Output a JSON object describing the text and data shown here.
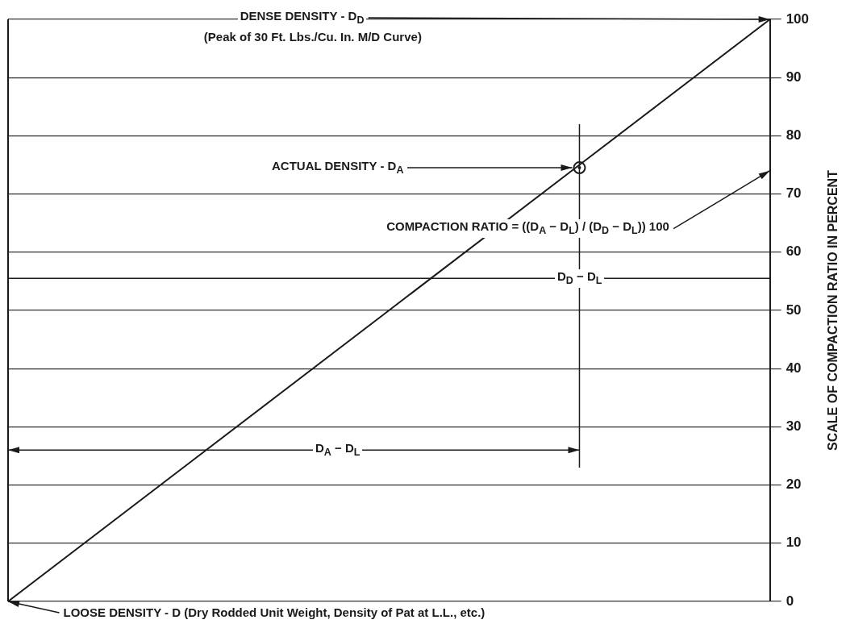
{
  "chart_data": {
    "type": "line",
    "ylabel": "SCALE OF COMPACTION RATIO IN PERCENT",
    "categories": [
      null,
      null,
      null,
      null,
      null
    ],
    "ylim": [
      0,
      100
    ],
    "yticks": [
      0,
      10,
      20,
      30,
      40,
      50,
      60,
      70,
      80,
      90,
      100
    ],
    "series": [
      {
        "color": "#1a1a1a",
        "marker": "none",
        "values": [
          0,
          25,
          50,
          75,
          100
        ]
      },
      {
        "type": "scatter",
        "color": "#1a1a1a",
        "marker": "circle",
        "values": [
          null,
          null,
          null,
          74.5,
          null
        ],
        "errors": [
          null,
          null,
          null,
          [
            23,
            82
          ],
          null
        ]
      }
    ],
    "annotations": [
      "DENSE DENSITY - D$_{D}$",
      "(Peak of 30 Ft. Lbs./Cu. In. M/D Curve)",
      "ACTUAL DENSITY - D$_{A}$",
      "COMPACTION RATIO = ((D$_{A}$ − D$_{L}$) / (D$_{D}$ − D$_{L}$)) 100",
      "D$_{A}$ − D$_{L}$",
      "LOOSE DENSITY - D (Dry Rodded Unit Weight, Density of Pat at L.L., etc.)"
    ],
    "ref_lines": [
      {
        "axis": "y",
        "value": 55.5,
        "label": "D$_{D}$ − D$_{L}$",
        "color": "#1a1a1a"
      }
    ],
    "grid": "y",
    "legend": false,
    "tick_labels": "y"
  }
}
